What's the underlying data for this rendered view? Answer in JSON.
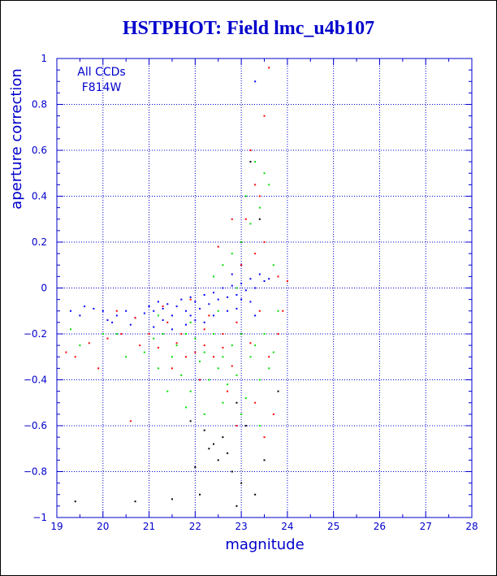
{
  "chart_data": {
    "type": "scatter",
    "title": "HSTPHOT: Field lmc_u4b107",
    "xlabel": "magnitude",
    "ylabel": "aperture correction",
    "xlim": [
      19,
      28
    ],
    "ylim": [
      -1,
      1
    ],
    "xticks": [
      19,
      20,
      21,
      22,
      23,
      24,
      25,
      26,
      27,
      28
    ],
    "yticks": [
      -1,
      -0.8,
      -0.6,
      -0.4,
      -0.2,
      0,
      0.2,
      0.4,
      0.6,
      0.8,
      1
    ],
    "xtick_labels": [
      "19",
      "20",
      "21",
      "22",
      "23",
      "24",
      "25",
      "26",
      "27",
      "28"
    ],
    "ytick_labels": [
      "−1",
      "−0.8",
      "−0.6",
      "−0.4",
      "−0.2",
      "0",
      "0.2",
      "0.4",
      "0.6",
      "0.8",
      "1"
    ],
    "grid": true,
    "grid_style": "dotted",
    "annotations": [
      "All CCDs",
      "F814W"
    ],
    "colors": {
      "axis": "#0000cc",
      "grid": "#0000cc",
      "title": "#0000cc"
    },
    "series": [
      {
        "color": "#0000ff",
        "points": [
          [
            19.3,
            -0.1
          ],
          [
            19.5,
            -0.12
          ],
          [
            19.8,
            -0.09
          ],
          [
            20.1,
            -0.14
          ],
          [
            20.3,
            -0.12
          ],
          [
            20.5,
            -0.1
          ],
          [
            20.7,
            -0.13
          ],
          [
            20.9,
            -0.11
          ],
          [
            21.0,
            -0.08
          ],
          [
            21.1,
            -0.1
          ],
          [
            21.2,
            -0.06
          ],
          [
            21.3,
            -0.09
          ],
          [
            21.4,
            -0.07
          ],
          [
            21.5,
            -0.12
          ],
          [
            21.6,
            -0.08
          ],
          [
            21.7,
            -0.05
          ],
          [
            21.8,
            -0.1
          ],
          [
            21.9,
            -0.04
          ],
          [
            22.0,
            -0.06
          ],
          [
            22.1,
            -0.09
          ],
          [
            22.2,
            -0.03
          ],
          [
            22.3,
            -0.07
          ],
          [
            22.4,
            -0.02
          ],
          [
            22.5,
            -0.05
          ],
          [
            22.6,
            0.0
          ],
          [
            22.7,
            -0.04
          ],
          [
            22.8,
            0.01
          ],
          [
            22.9,
            -0.03
          ],
          [
            23.0,
            0.02
          ],
          [
            23.1,
            -0.01
          ],
          [
            23.2,
            0.04
          ],
          [
            23.3,
            0.0
          ],
          [
            23.4,
            0.06
          ],
          [
            23.5,
            0.03
          ],
          [
            22.0,
            -0.14
          ],
          [
            21.8,
            -0.16
          ],
          [
            21.5,
            -0.18
          ],
          [
            22.4,
            -0.12
          ],
          [
            22.9,
            -0.09
          ],
          [
            23.2,
            -0.06
          ],
          [
            20.6,
            -0.16
          ],
          [
            20.2,
            -0.15
          ],
          [
            21.1,
            -0.17
          ],
          [
            23.0,
            -0.05
          ],
          [
            22.2,
            -0.15
          ],
          [
            23.6,
            0.04
          ],
          [
            23.3,
            -0.12
          ],
          [
            22.7,
            -0.1
          ],
          [
            21.9,
            -0.12
          ],
          [
            21.3,
            -0.14
          ],
          [
            20.0,
            -0.1
          ],
          [
            19.6,
            -0.08
          ],
          [
            23.0,
            0.1
          ],
          [
            22.8,
            0.06
          ],
          [
            23.3,
            0.9
          ]
        ]
      },
      {
        "color": "#ff0000",
        "points": [
          [
            19.2,
            -0.28
          ],
          [
            19.4,
            -0.3
          ],
          [
            19.7,
            -0.24
          ],
          [
            19.9,
            -0.35
          ],
          [
            20.1,
            -0.22
          ],
          [
            20.4,
            -0.2
          ],
          [
            20.6,
            -0.58
          ],
          [
            20.8,
            -0.25
          ],
          [
            21.0,
            -0.2
          ],
          [
            21.2,
            -0.26
          ],
          [
            21.4,
            -0.15
          ],
          [
            21.6,
            -0.24
          ],
          [
            21.8,
            -0.3
          ],
          [
            22.0,
            -0.28
          ],
          [
            22.2,
            -0.18
          ],
          [
            22.4,
            -0.3
          ],
          [
            22.6,
            -0.26
          ],
          [
            22.8,
            -0.34
          ],
          [
            23.0,
            -0.2
          ],
          [
            23.2,
            -0.24
          ],
          [
            23.4,
            -0.1
          ],
          [
            23.6,
            -0.3
          ],
          [
            21.5,
            -0.35
          ],
          [
            22.1,
            -0.4
          ],
          [
            22.7,
            -0.45
          ],
          [
            23.3,
            -0.5
          ],
          [
            22.5,
            0.18
          ],
          [
            22.8,
            0.3
          ],
          [
            23.0,
            0.2
          ],
          [
            23.2,
            0.6
          ],
          [
            23.4,
            0.4
          ],
          [
            23.5,
            0.75
          ],
          [
            23.6,
            0.96
          ],
          [
            23.3,
            0.45
          ],
          [
            23.1,
            0.3
          ],
          [
            22.9,
            -0.6
          ],
          [
            23.5,
            -0.65
          ],
          [
            23.7,
            -0.55
          ],
          [
            22.3,
            -0.12
          ],
          [
            21.9,
            -0.05
          ],
          [
            21.3,
            -0.08
          ],
          [
            20.7,
            -0.13
          ],
          [
            22.6,
            -0.2
          ],
          [
            23.0,
            0.1
          ],
          [
            23.3,
            0.15
          ],
          [
            23.5,
            0.2
          ],
          [
            20.3,
            -0.1
          ],
          [
            21.7,
            -0.2
          ],
          [
            22.2,
            -0.25
          ],
          [
            22.9,
            -0.15
          ],
          [
            23.8,
            0.05
          ],
          [
            23.8,
            -0.2
          ],
          [
            23.9,
            -0.1
          ],
          [
            24.0,
            0.03
          ]
        ]
      },
      {
        "color": "#00dd00",
        "points": [
          [
            19.5,
            -0.25
          ],
          [
            20.3,
            -0.2
          ],
          [
            20.5,
            -0.3
          ],
          [
            20.9,
            -0.28
          ],
          [
            21.1,
            -0.22
          ],
          [
            21.2,
            -0.35
          ],
          [
            21.3,
            -0.2
          ],
          [
            21.5,
            -0.3
          ],
          [
            21.6,
            -0.25
          ],
          [
            21.7,
            -0.38
          ],
          [
            21.8,
            -0.2
          ],
          [
            21.9,
            -0.45
          ],
          [
            22.0,
            -0.22
          ],
          [
            22.1,
            -0.32
          ],
          [
            22.2,
            -0.28
          ],
          [
            22.3,
            -0.4
          ],
          [
            22.4,
            -0.2
          ],
          [
            22.5,
            -0.35
          ],
          [
            22.6,
            -0.3
          ],
          [
            22.7,
            -0.42
          ],
          [
            22.8,
            -0.25
          ],
          [
            22.9,
            -0.38
          ],
          [
            23.0,
            -0.2
          ],
          [
            23.1,
            -0.48
          ],
          [
            23.2,
            -0.3
          ],
          [
            23.3,
            -0.25
          ],
          [
            23.4,
            -0.4
          ],
          [
            23.5,
            -0.2
          ],
          [
            23.6,
            -0.35
          ],
          [
            23.7,
            -0.28
          ],
          [
            21.4,
            -0.45
          ],
          [
            21.8,
            -0.52
          ],
          [
            22.2,
            -0.55
          ],
          [
            22.6,
            -0.5
          ],
          [
            23.0,
            -0.55
          ],
          [
            23.4,
            -0.6
          ],
          [
            22.4,
            0.05
          ],
          [
            22.6,
            0.1
          ],
          [
            22.8,
            0.15
          ],
          [
            23.0,
            0.2
          ],
          [
            23.2,
            0.28
          ],
          [
            23.4,
            0.35
          ],
          [
            23.5,
            0.5
          ],
          [
            23.6,
            0.45
          ],
          [
            23.3,
            0.55
          ],
          [
            23.1,
            0.4
          ],
          [
            22.9,
            0.0
          ],
          [
            22.5,
            -0.1
          ],
          [
            21.9,
            -0.15
          ],
          [
            21.2,
            -0.12
          ],
          [
            20.0,
            -0.2
          ],
          [
            19.3,
            -0.18
          ],
          [
            23.8,
            -0.1
          ],
          [
            23.7,
            0.1
          ]
        ]
      },
      {
        "color": "#000000",
        "points": [
          [
            19.4,
            -0.93
          ],
          [
            20.7,
            -0.93
          ],
          [
            21.5,
            -0.92
          ],
          [
            22.0,
            -0.78
          ],
          [
            22.1,
            -0.9
          ],
          [
            22.3,
            -0.7
          ],
          [
            22.5,
            -0.75
          ],
          [
            22.6,
            -0.65
          ],
          [
            22.8,
            -0.8
          ],
          [
            22.9,
            -0.95
          ],
          [
            23.0,
            -0.85
          ],
          [
            23.1,
            -0.6
          ],
          [
            22.7,
            -0.72
          ],
          [
            22.4,
            -0.68
          ],
          [
            22.2,
            -0.62
          ],
          [
            21.9,
            -0.58
          ],
          [
            23.3,
            -0.9
          ],
          [
            23.5,
            -0.75
          ],
          [
            23.8,
            -0.45
          ],
          [
            23.2,
            0.55
          ],
          [
            23.4,
            0.3
          ],
          [
            22.9,
            -0.5
          ]
        ]
      }
    ]
  }
}
